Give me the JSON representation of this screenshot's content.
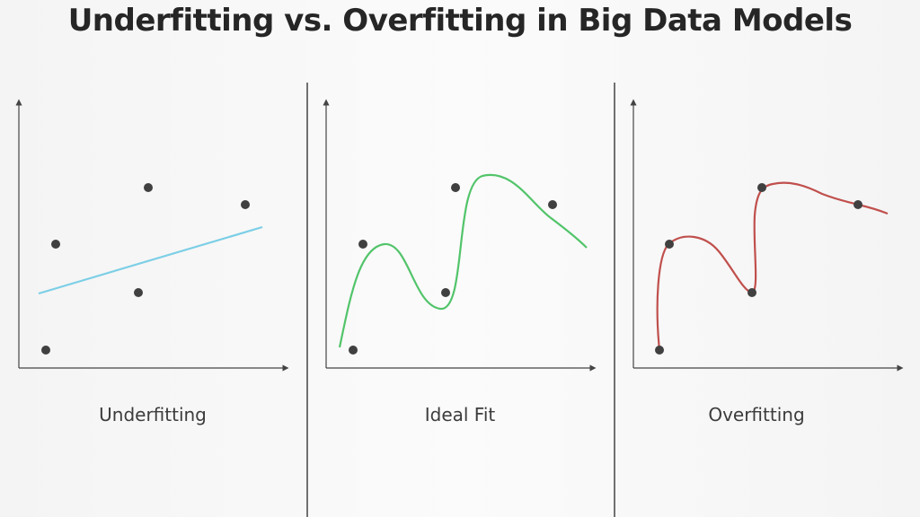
{
  "title": "Underfitting vs. Overfitting in Big Data Models",
  "colors": {
    "axis": "#444444",
    "divider": "#444444",
    "point": "#404040",
    "underfit_line": "#7ccfe6",
    "ideal_curve": "#52c46a",
    "overfit_curve": "#c0504d"
  },
  "panels": [
    {
      "label": "Underfitting",
      "curve_type": "linear"
    },
    {
      "label": "Ideal Fit",
      "curve_type": "smooth"
    },
    {
      "label": "Overfitting",
      "curve_type": "interpolating"
    }
  ]
}
